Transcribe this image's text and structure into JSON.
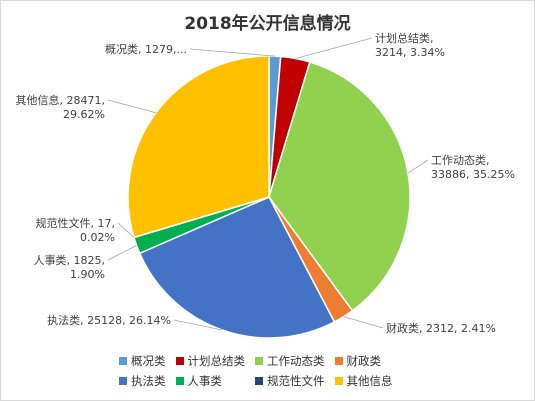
{
  "chart_data": {
    "type": "pie",
    "title": "2018年公开信息情况",
    "slices": [
      {
        "name": "概况类",
        "value": 1279,
        "percent": "1.33%",
        "color": "#5B9BD5",
        "label_lines": [
          "概况类, 1279,..."
        ]
      },
      {
        "name": "计划总结类",
        "value": 3214,
        "percent": "3.34%",
        "color": "#C00000",
        "label_lines": [
          "计划总结类,",
          "3214, 3.34%"
        ]
      },
      {
        "name": "工作动态类",
        "value": 33886,
        "percent": "35.25%",
        "color": "#92D050",
        "label_lines": [
          "工作动态类,",
          "33886, 35.25%"
        ]
      },
      {
        "name": "财政类",
        "value": 2312,
        "percent": "2.41%",
        "color": "#ED7D31",
        "label_lines": [
          "财政类, 2312, 2.41%"
        ]
      },
      {
        "name": "执法类",
        "value": 25128,
        "percent": "26.14%",
        "color": "#4472C4",
        "label_lines": [
          "执法类, 25128, 26.14%"
        ]
      },
      {
        "name": "人事类",
        "value": 1825,
        "percent": "1.90%",
        "color": "#00B050",
        "label_lines": [
          "人事类, 1825,",
          "1.90%"
        ]
      },
      {
        "name": "规范性文件",
        "value": 17,
        "percent": "0.02%",
        "color": "#264478",
        "label_lines": [
          "规范性文件, 17,",
          "0.02%"
        ]
      },
      {
        "name": "其他信息",
        "value": 28471,
        "percent": "29.62%",
        "color": "#FFC000",
        "label_lines": [
          "其他信息, 28471,",
          "29.62%"
        ]
      }
    ],
    "legend_position": "bottom"
  }
}
